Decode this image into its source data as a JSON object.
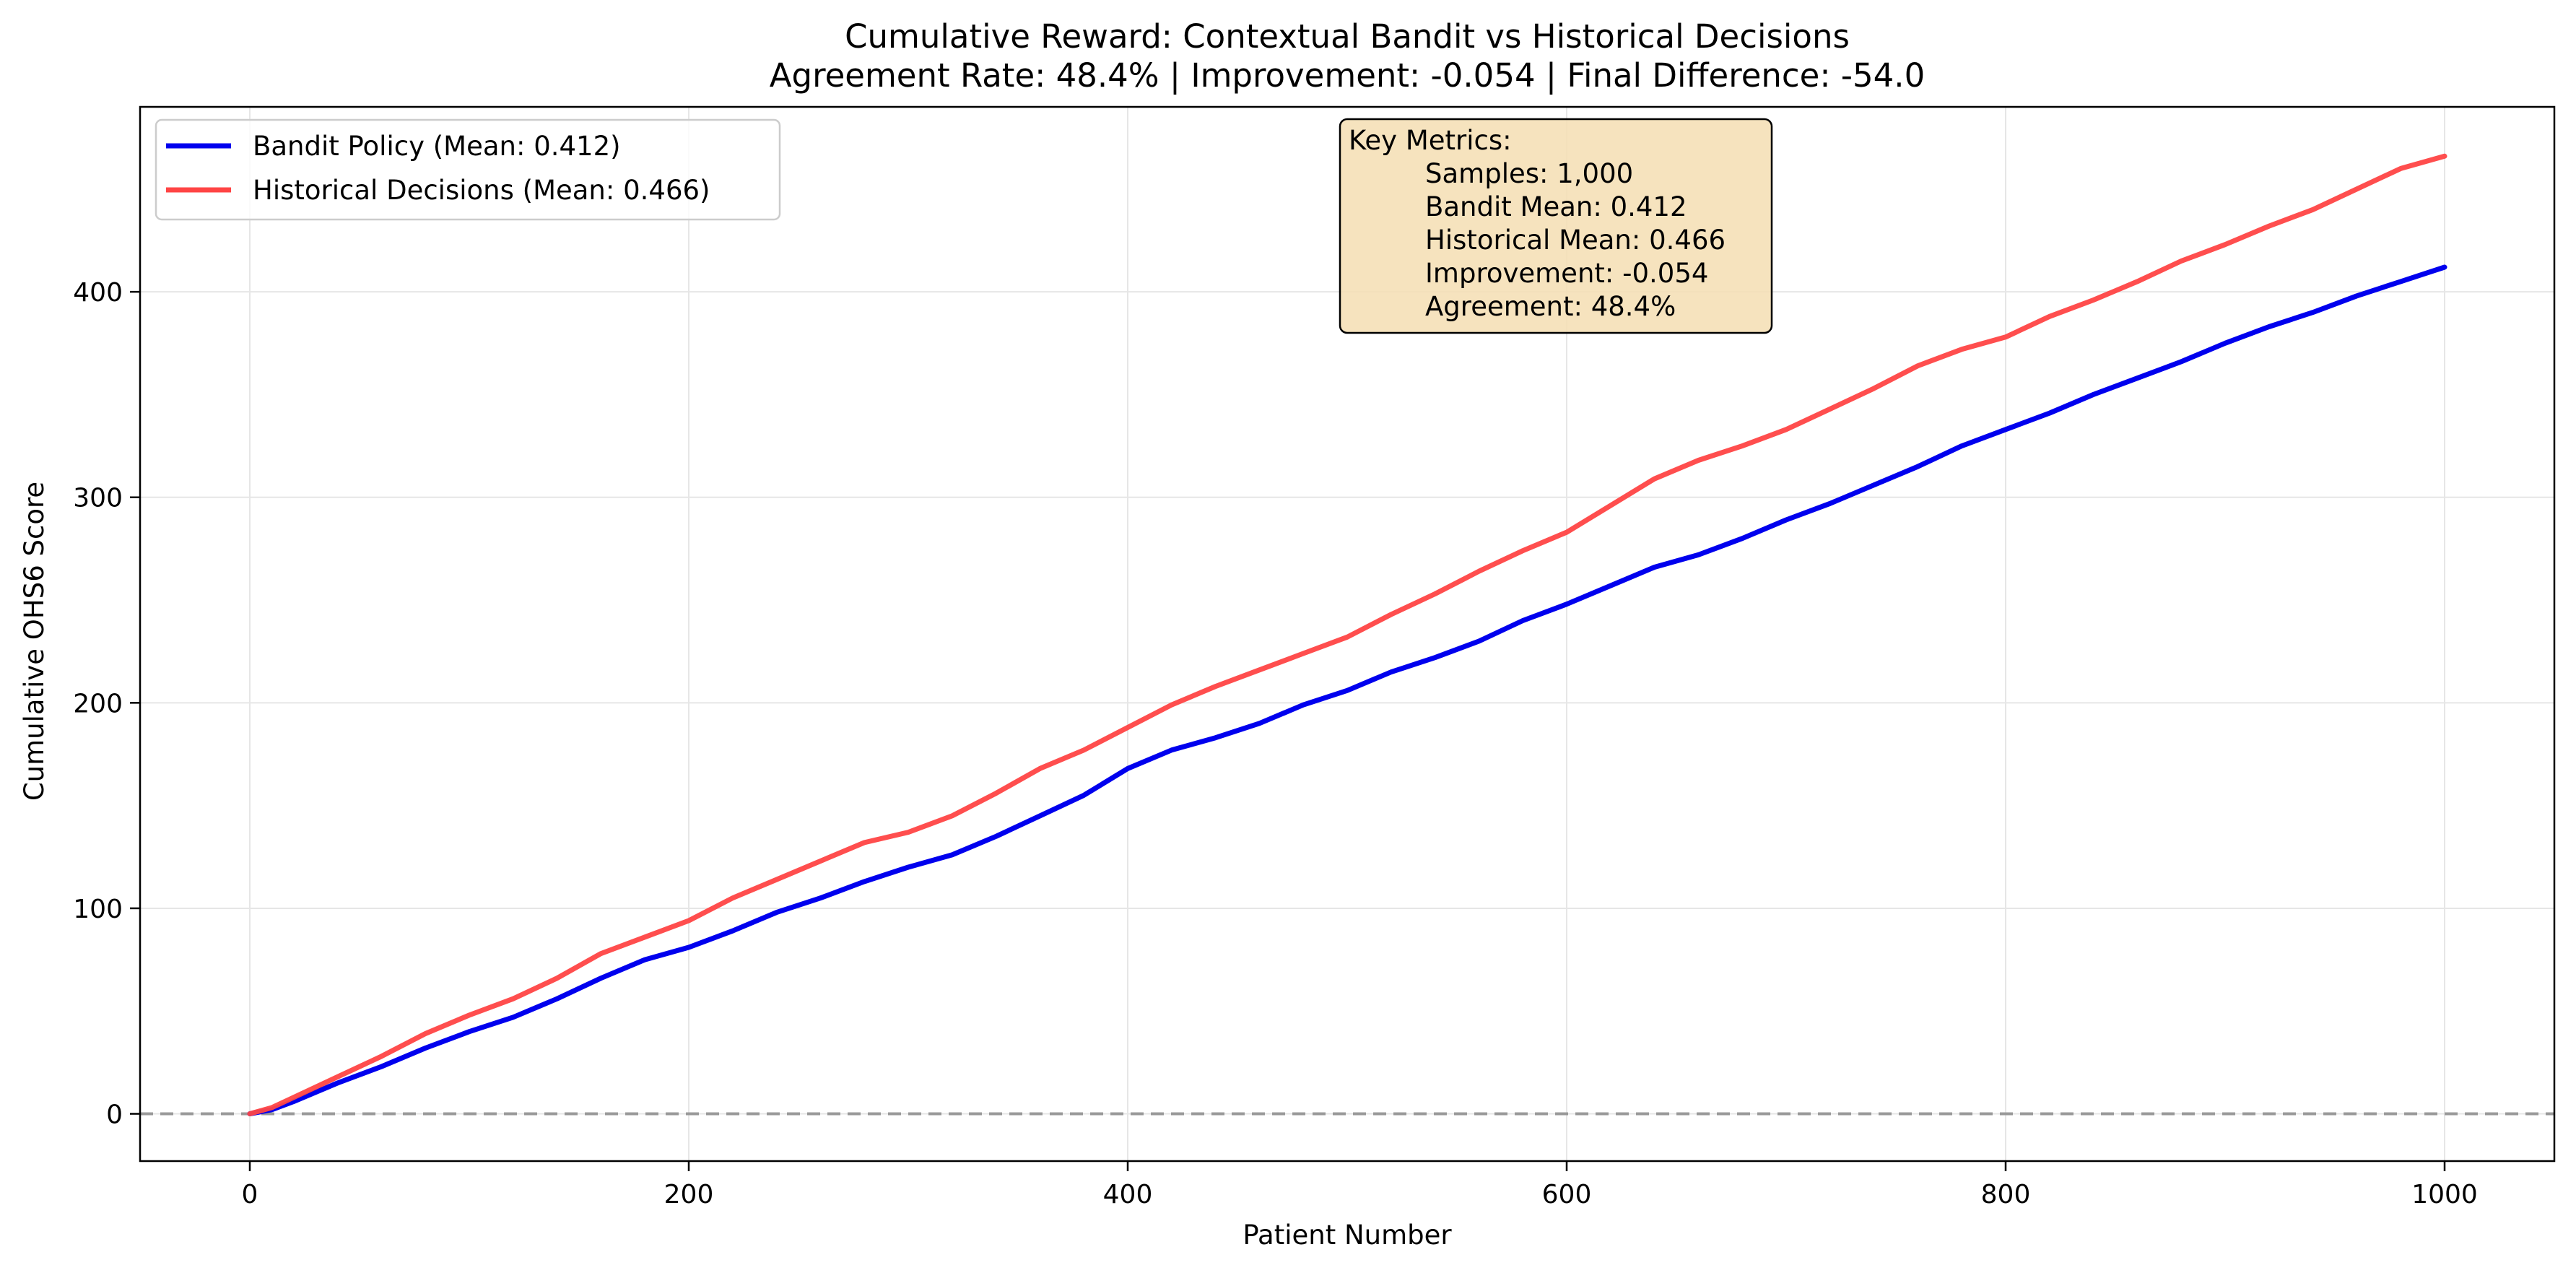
{
  "chart_data": {
    "type": "line",
    "title": "Cumulative Reward: Contextual Bandit vs Historical Decisions",
    "subtitle": "Agreement Rate: 48.4% | Improvement: -0.054 | Final Difference: -54.0",
    "xlabel": "Patient Number",
    "ylabel": "Cumulative OHS6 Score",
    "xlim": [
      -50,
      1050
    ],
    "ylim": [
      -23,
      490
    ],
    "x_ticks": [
      0,
      200,
      400,
      600,
      800,
      1000
    ],
    "y_ticks": [
      0,
      100,
      200,
      300,
      400
    ],
    "grid": true,
    "legend_position": "top-left",
    "reference_line": {
      "y": 0,
      "style": "dashed",
      "color": "#999999"
    },
    "series": [
      {
        "name": "Bandit Policy (Mean: 0.412)",
        "color": "#0000ee",
        "x": [
          0,
          10,
          20,
          40,
          60,
          80,
          100,
          120,
          140,
          160,
          180,
          200,
          220,
          240,
          260,
          280,
          300,
          320,
          340,
          360,
          380,
          400,
          420,
          440,
          460,
          480,
          500,
          520,
          540,
          560,
          580,
          600,
          620,
          640,
          660,
          680,
          700,
          720,
          740,
          760,
          780,
          800,
          820,
          840,
          860,
          880,
          900,
          920,
          940,
          960,
          980,
          1000
        ],
        "values": [
          0,
          2,
          6,
          15,
          23,
          32,
          40,
          47,
          56,
          66,
          75,
          81,
          89,
          98,
          105,
          113,
          120,
          126,
          135,
          145,
          155,
          168,
          177,
          183,
          190,
          199,
          206,
          215,
          222,
          230,
          240,
          248,
          257,
          266,
          272,
          280,
          289,
          297,
          306,
          315,
          325,
          333,
          341,
          350,
          358,
          366,
          375,
          383,
          390,
          398,
          405,
          412
        ]
      },
      {
        "name": "Historical Decisions (Mean: 0.466)",
        "color": "#ff4444",
        "x": [
          0,
          10,
          20,
          40,
          60,
          80,
          100,
          120,
          140,
          160,
          180,
          200,
          220,
          240,
          260,
          280,
          300,
          320,
          340,
          360,
          380,
          400,
          420,
          440,
          460,
          480,
          500,
          520,
          540,
          560,
          580,
          600,
          620,
          640,
          660,
          680,
          700,
          720,
          740,
          760,
          780,
          800,
          820,
          840,
          860,
          880,
          900,
          920,
          940,
          960,
          980,
          1000
        ],
        "values": [
          0,
          3,
          8,
          18,
          28,
          39,
          48,
          56,
          66,
          78,
          86,
          94,
          105,
          114,
          123,
          132,
          137,
          145,
          156,
          168,
          177,
          188,
          199,
          208,
          216,
          224,
          232,
          243,
          253,
          264,
          274,
          283,
          296,
          309,
          318,
          325,
          333,
          343,
          353,
          364,
          372,
          378,
          388,
          396,
          405,
          415,
          423,
          432,
          440,
          450,
          460,
          466
        ]
      }
    ],
    "annotation": {
      "heading": "Key Metrics:",
      "lines": [
        "Samples: 1,000",
        "Bandit Mean: 0.412",
        "Historical Mean: 0.466",
        "Improvement: -0.054",
        "Agreement: 48.4%"
      ]
    }
  }
}
